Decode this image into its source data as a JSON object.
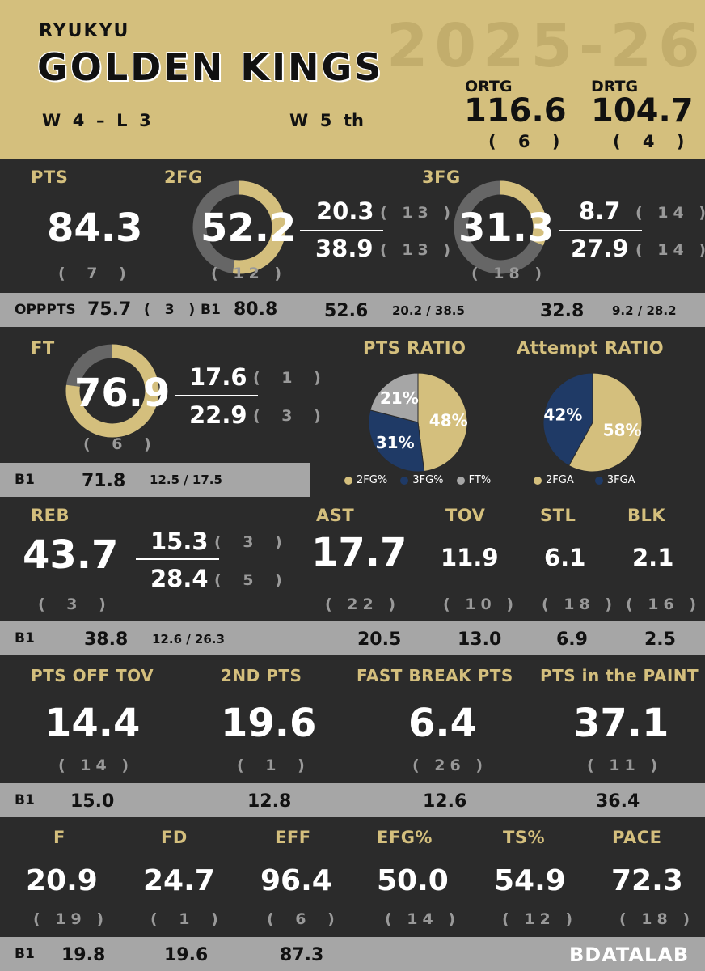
{
  "header": {
    "city": "RYUKYU",
    "team": "GOLDEN  KINGS",
    "season": "2025-26",
    "record": "W  4  –  L  3",
    "streak": "W  5  th",
    "ortg_label": "ORTG",
    "ortg": "116.6",
    "ortg_rank": "( 6 )",
    "drtg_label": "DRTG",
    "drtg": "104.7",
    "drtg_rank": "( 4 )"
  },
  "shooting": {
    "pts_label": "PTS",
    "pts": "84.3",
    "pts_rank": "( 7 )",
    "fg2_label": "2FG",
    "fg2_pct": "52.2",
    "fg2_pct_value": 52.2,
    "fg2_rank": "( 12 )",
    "fg2_made": "20.3",
    "fg2_made_rank": "( 13 )",
    "fg2_att": "38.9",
    "fg2_att_rank": "( 13 )",
    "fg3_label": "3FG",
    "fg3_pct": "31.3",
    "fg3_pct_value": 31.3,
    "fg3_rank": "( 18 )",
    "fg3_made": "8.7",
    "fg3_made_rank": "( 14 )",
    "fg3_att": "27.9",
    "fg3_att_rank": "( 14 )"
  },
  "band1": {
    "opp_label": "OPPPTS",
    "opp": "75.7",
    "opp_rank": "( 3 )",
    "b1": "B1",
    "b1_pts": "80.8",
    "b1_fg2": "52.6",
    "b1_fg2_split": "20.2 / 38.5",
    "b1_fg3": "32.8",
    "b1_fg3_split": "9.2 / 28.2"
  },
  "ft": {
    "label": "FT",
    "pct": "76.9",
    "pct_value": 76.9,
    "rank": "( 6 )",
    "made": "17.6",
    "made_rank": "( 1 )",
    "att": "22.9",
    "att_rank": "( 3 )",
    "b1": "B1",
    "b1_pct": "71.8",
    "b1_split": "12.5 / 17.5"
  },
  "pts_ratio": {
    "title": "PTS RATIO",
    "legend": [
      "2FG%",
      "3FG%",
      "FT%"
    ]
  },
  "attempt_ratio": {
    "title": "Attempt RATIO",
    "legend": [
      "2FGA",
      "3FGA"
    ]
  },
  "chart_data": [
    {
      "type": "pie",
      "title": "PTS RATIO",
      "categories": [
        "2FG%",
        "3FG%",
        "FT%"
      ],
      "values": [
        48,
        31,
        21
      ],
      "labels": [
        "48%",
        "31%",
        "21%"
      ]
    },
    {
      "type": "pie",
      "title": "Attempt RATIO",
      "categories": [
        "2FGA",
        "3FGA"
      ],
      "values": [
        58,
        42
      ],
      "labels": [
        "58%",
        "42%"
      ]
    }
  ],
  "misc": {
    "reb_label": "REB",
    "reb": "43.7",
    "reb_rank": "( 3 )",
    "oreb": "15.3",
    "oreb_rank": "( 3 )",
    "dreb": "28.4",
    "dreb_rank": "( 5 )",
    "ast_label": "AST",
    "ast": "17.7",
    "ast_rank": "( 22 )",
    "tov_label": "TOV",
    "tov": "11.9",
    "tov_rank": "( 10 )",
    "stl_label": "STL",
    "stl": "6.1",
    "stl_rank": "( 18 )",
    "blk_label": "BLK",
    "blk": "2.1",
    "blk_rank": "( 16 )"
  },
  "band3": {
    "b1": "B1",
    "reb": "38.8",
    "reb_split": "12.6 / 26.3",
    "ast": "20.5",
    "tov": "13.0",
    "stl": "6.9",
    "blk": "2.5"
  },
  "scoring": {
    "ptov_label": "PTS OFF TOV",
    "ptov": "14.4",
    "ptov_rank": "( 14 )",
    "sec_label": "2ND PTS",
    "sec": "19.6",
    "sec_rank": "( 1 )",
    "fb_label": "FAST BREAK PTS",
    "fb": "6.4",
    "fb_rank": "( 26 )",
    "pip_label": "PTS in the PAINT",
    "pip": "37.1",
    "pip_rank": "( 11 )"
  },
  "band4": {
    "b1": "B1",
    "ptov": "15.0",
    "sec": "12.8",
    "fb": "12.6",
    "pip": "36.4"
  },
  "advanced": {
    "f_label": "F",
    "f": "20.9",
    "f_rank": "( 19 )",
    "fd_label": "FD",
    "fd": "24.7",
    "fd_rank": "( 1 )",
    "eff_label": "EFF",
    "eff": "96.4",
    "eff_rank": "( 6 )",
    "efg_label": "EFG%",
    "efg": "50.0",
    "efg_rank": "( 14 )",
    "ts_label": "TS%",
    "ts": "54.9",
    "ts_rank": "( 12 )",
    "pace_label": "PACE",
    "pace": "72.3",
    "pace_rank": "( 18 )"
  },
  "band5": {
    "b1": "B1",
    "f": "19.8",
    "fd": "19.6",
    "eff": "87.3",
    "brand": "BDATALAB"
  },
  "colors": {
    "gold": "#d4bf7d",
    "navy": "#1f3a66",
    "grey": "#a6a6a6",
    "ring_track": "#666666",
    "dark": "#2b2b2b"
  }
}
